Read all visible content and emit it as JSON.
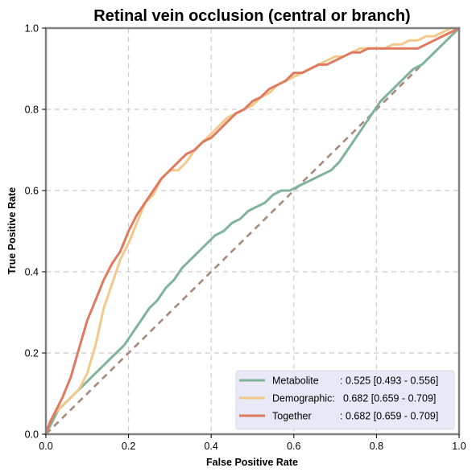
{
  "chart_data": {
    "type": "line",
    "title": "Retinal vein occlusion (central or branch)",
    "xlabel": "False Positive Rate",
    "ylabel": "True Positive Rate",
    "xlim": [
      0,
      1
    ],
    "ylim": [
      0,
      1
    ],
    "xticks": [
      "0.0",
      "0.2",
      "0.4",
      "0.6",
      "0.8",
      "1.0"
    ],
    "yticks": [
      "0.0",
      "0.2",
      "0.4",
      "0.6",
      "0.8",
      "1.0"
    ],
    "grid": true,
    "legend_position": "lower-right",
    "diagonal": {
      "x": [
        0,
        1
      ],
      "y": [
        0,
        1
      ],
      "color": "#a88a7b",
      "style": "dashed"
    },
    "series": [
      {
        "name": "Metabolite",
        "label_name": "Metabolite",
        "label_value": ": 0.525 [0.493 - 0.556]",
        "color": "#7fb39a",
        "x": [
          0,
          0.01,
          0.02,
          0.03,
          0.05,
          0.07,
          0.09,
          0.11,
          0.13,
          0.15,
          0.17,
          0.19,
          0.21,
          0.23,
          0.25,
          0.27,
          0.29,
          0.31,
          0.33,
          0.35,
          0.37,
          0.39,
          0.41,
          0.43,
          0.45,
          0.47,
          0.49,
          0.51,
          0.53,
          0.55,
          0.57,
          0.59,
          0.61,
          0.63,
          0.65,
          0.67,
          0.69,
          0.71,
          0.73,
          0.75,
          0.77,
          0.79,
          0.81,
          0.83,
          0.85,
          0.87,
          0.89,
          0.91,
          0.93,
          0.95,
          0.97,
          0.99,
          1.0
        ],
        "y": [
          0,
          0.02,
          0.04,
          0.06,
          0.08,
          0.1,
          0.12,
          0.14,
          0.16,
          0.18,
          0.2,
          0.22,
          0.25,
          0.28,
          0.31,
          0.33,
          0.36,
          0.38,
          0.41,
          0.43,
          0.45,
          0.47,
          0.49,
          0.5,
          0.52,
          0.53,
          0.55,
          0.56,
          0.57,
          0.59,
          0.6,
          0.6,
          0.61,
          0.62,
          0.63,
          0.64,
          0.65,
          0.67,
          0.7,
          0.73,
          0.76,
          0.79,
          0.82,
          0.84,
          0.86,
          0.88,
          0.9,
          0.91,
          0.93,
          0.95,
          0.97,
          0.99,
          1.0
        ]
      },
      {
        "name": "Demographic",
        "label_name": "Demographic:",
        "label_value": "0.682 [0.659 - 0.709]",
        "color": "#f2c98a",
        "x": [
          0,
          0.01,
          0.02,
          0.04,
          0.06,
          0.08,
          0.1,
          0.12,
          0.14,
          0.16,
          0.18,
          0.2,
          0.22,
          0.24,
          0.26,
          0.28,
          0.3,
          0.32,
          0.34,
          0.36,
          0.38,
          0.4,
          0.42,
          0.44,
          0.46,
          0.48,
          0.5,
          0.52,
          0.54,
          0.56,
          0.58,
          0.6,
          0.62,
          0.64,
          0.66,
          0.68,
          0.7,
          0.72,
          0.74,
          0.76,
          0.78,
          0.8,
          0.82,
          0.84,
          0.86,
          0.88,
          0.9,
          0.92,
          0.94,
          0.96,
          0.98,
          1.0
        ],
        "y": [
          0,
          0.03,
          0.05,
          0.07,
          0.09,
          0.11,
          0.15,
          0.22,
          0.31,
          0.37,
          0.43,
          0.47,
          0.52,
          0.57,
          0.59,
          0.63,
          0.65,
          0.65,
          0.67,
          0.7,
          0.72,
          0.74,
          0.76,
          0.78,
          0.79,
          0.8,
          0.81,
          0.83,
          0.84,
          0.86,
          0.87,
          0.88,
          0.89,
          0.9,
          0.91,
          0.92,
          0.93,
          0.93,
          0.94,
          0.95,
          0.95,
          0.95,
          0.95,
          0.96,
          0.96,
          0.97,
          0.97,
          0.98,
          0.98,
          0.99,
          1.0,
          1.0
        ]
      },
      {
        "name": "Together",
        "label_name": "Together",
        "label_value": ": 0.682 [0.659 - 0.709]",
        "color": "#e07a5f",
        "x": [
          0,
          0.01,
          0.02,
          0.04,
          0.06,
          0.08,
          0.1,
          0.12,
          0.14,
          0.16,
          0.18,
          0.2,
          0.22,
          0.24,
          0.26,
          0.28,
          0.3,
          0.32,
          0.34,
          0.36,
          0.38,
          0.4,
          0.42,
          0.44,
          0.46,
          0.48,
          0.5,
          0.52,
          0.54,
          0.56,
          0.58,
          0.6,
          0.62,
          0.64,
          0.66,
          0.68,
          0.7,
          0.72,
          0.74,
          0.76,
          0.78,
          0.8,
          0.82,
          0.84,
          0.86,
          0.88,
          0.9,
          0.92,
          0.94,
          0.96,
          0.98,
          1.0
        ],
        "y": [
          0,
          0.03,
          0.05,
          0.09,
          0.14,
          0.21,
          0.28,
          0.33,
          0.38,
          0.42,
          0.45,
          0.5,
          0.54,
          0.57,
          0.6,
          0.63,
          0.65,
          0.67,
          0.69,
          0.7,
          0.72,
          0.73,
          0.75,
          0.77,
          0.79,
          0.8,
          0.82,
          0.83,
          0.85,
          0.86,
          0.87,
          0.89,
          0.89,
          0.9,
          0.91,
          0.91,
          0.92,
          0.93,
          0.94,
          0.94,
          0.95,
          0.95,
          0.95,
          0.95,
          0.95,
          0.95,
          0.95,
          0.96,
          0.97,
          0.98,
          0.99,
          1.0
        ]
      }
    ]
  }
}
